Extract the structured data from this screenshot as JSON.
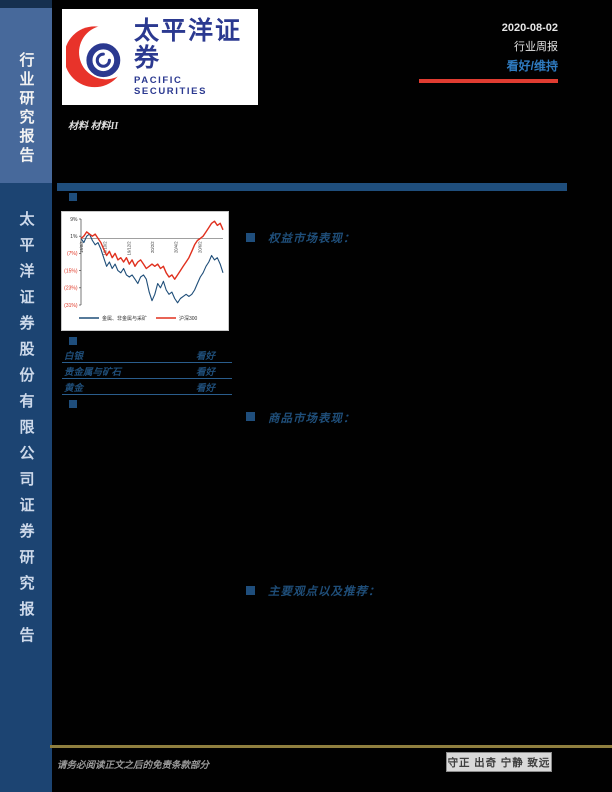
{
  "sidebar": {
    "top_label": "行业研究报告",
    "bottom_label": "太平洋证券股份有限公司证券研究报告"
  },
  "header": {
    "logo": {
      "cn": "太平洋证券",
      "en": "PACIFIC SECURITIES"
    },
    "date": "2020-08-02",
    "report_type": "行业周报",
    "rating": "看好/维持",
    "industry": "材料 材料II"
  },
  "sections": {
    "equity": "权益市场表现：",
    "commodity": "商品市场表现：",
    "views": "主要观点以及推荐："
  },
  "ratings_table": {
    "rows": [
      {
        "name": "白银",
        "rating": "看好"
      },
      {
        "name": "贵金属与矿石",
        "rating": "看好"
      },
      {
        "name": "黄金",
        "rating": "看好"
      }
    ]
  },
  "footer": {
    "disclaimer": "请务必阅读正文之后的免责条款部分",
    "motto": "守正 出奇 宁静 致远"
  },
  "colors": {
    "accent_red": "#e03c31",
    "brand_blue": "#2b3990",
    "bar_blue": "#1f4e7c",
    "section_blue": "#1f4e79",
    "rating_blue": "#2f7bc0",
    "sidebar_top": "#47699b",
    "sidebar_bottom": "#1c4472",
    "gold": "#8f7f3f"
  },
  "chart_data": {
    "type": "line",
    "title": "",
    "xlabel": "",
    "ylabel": "",
    "ylim": [
      -31,
      9
    ],
    "ytick_values": [
      9,
      1,
      -7,
      -15,
      -23,
      -31
    ],
    "ytick_labels": [
      "9%",
      "1%",
      "(7%)",
      "(15%)",
      "(23%)",
      "(31%)"
    ],
    "xtick_labels": [
      "19/8/2",
      "19/10/2",
      "19/12/2",
      "20/2/2",
      "20/4/2",
      "20/6/2"
    ],
    "grid": false,
    "legend_position": "bottom",
    "negative_tick_color": "#e0301e",
    "series": [
      {
        "name": "金属、非金属与采矿",
        "color": "#1f4e79",
        "values": [
          0,
          -2,
          1,
          2,
          -1,
          -3,
          -2,
          -5,
          -9,
          -13,
          -11,
          -14,
          -12,
          -15,
          -16,
          -14,
          -17,
          -18,
          -17,
          -19,
          -21,
          -18,
          -17,
          -19,
          -25,
          -29,
          -26,
          -21,
          -23,
          -20,
          -24,
          -26,
          -25,
          -28,
          -30,
          -28,
          -27,
          -26,
          -27,
          -26,
          -24,
          -21,
          -18,
          -16,
          -13,
          -11,
          -8,
          -10,
          -9,
          -12,
          -16
        ]
      },
      {
        "name": "沪深300",
        "color": "#e0301e",
        "values": [
          0,
          1,
          3,
          2,
          1,
          2,
          0,
          -2,
          -5,
          -8,
          -6,
          -9,
          -7,
          -10,
          -9,
          -11,
          -9,
          -12,
          -10,
          -13,
          -11,
          -10,
          -12,
          -14,
          -13,
          -12,
          -13,
          -12,
          -14,
          -13,
          -16,
          -18,
          -17,
          -19,
          -17,
          -15,
          -13,
          -11,
          -9,
          -6,
          -3,
          -1,
          0,
          1,
          3,
          5,
          7,
          8,
          6,
          7,
          4
        ]
      }
    ]
  }
}
